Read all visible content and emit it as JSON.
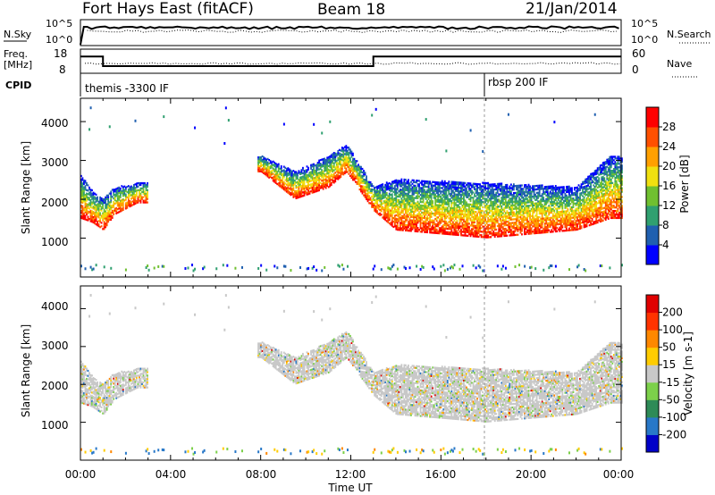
{
  "header": {
    "station": "Fort Hays East (fitACF)",
    "beam": "Beam 18",
    "date": "21/Jan/2014"
  },
  "strip_nsky": {
    "label": "N.Sky",
    "left_ticks": [
      "10^5",
      "10^0"
    ],
    "right_ticks": [
      "10^5",
      "10^0"
    ],
    "right_label": "N.Search",
    "right_legend_style": "dotted"
  },
  "strip_freq": {
    "label_line1": "Freq.",
    "label_line2": "[MHz]",
    "left_ticks": [
      "18",
      "8"
    ],
    "right_ticks": [
      "60",
      "0"
    ],
    "right_label": "Nave",
    "right_legend_style": "dotted",
    "freq_mhz": [
      {
        "t_start": 0.0,
        "t_end": 1.0,
        "value": 15.0
      },
      {
        "t_start": 1.0,
        "t_end": 13.0,
        "value": 10.5
      },
      {
        "t_start": 13.0,
        "t_end": 24.0,
        "value": 15.0
      }
    ]
  },
  "cpid": {
    "label": "CPID",
    "segments": [
      {
        "t_start": 0.0,
        "text": "themis -3300 IF"
      },
      {
        "t_start": 18.0,
        "text": "rbsp 200 IF"
      }
    ]
  },
  "chart_data": [
    {
      "type": "heatmap",
      "title": "",
      "ylabel": "Slant Range [km]",
      "xlabel": "",
      "xlim": [
        0,
        24
      ],
      "ylim": [
        0,
        4600
      ],
      "yticks": [
        "1000",
        "2000",
        "3000",
        "4000"
      ],
      "colorbar": {
        "label": "Power [dB]",
        "ticks": [
          "4",
          "8",
          "12",
          "16",
          "20",
          "24",
          "28"
        ],
        "colors": [
          "#0000ff",
          "#2060b0",
          "#30a070",
          "#70c030",
          "#f0e010",
          "#ffa000",
          "#ff5000",
          "#ff0000"
        ]
      },
      "echo_bands": [
        {
          "t": 0.0,
          "low": 1500,
          "high": 2600
        },
        {
          "t": 0.5,
          "low": 1400,
          "high": 2200
        },
        {
          "t": 1.0,
          "low": 1200,
          "high": 2000
        },
        {
          "t": 1.5,
          "low": 1600,
          "high": 2300
        },
        {
          "t": 2.5,
          "low": 1900,
          "high": 2400
        },
        {
          "t": 8.0,
          "low": 2700,
          "high": 3100
        },
        {
          "t": 9.5,
          "low": 2000,
          "high": 2700
        },
        {
          "t": 11.0,
          "low": 2300,
          "high": 3100
        },
        {
          "t": 11.8,
          "low": 2700,
          "high": 3400
        },
        {
          "t": 13.0,
          "low": 1700,
          "high": 2300
        },
        {
          "t": 14.0,
          "low": 1200,
          "high": 2500
        },
        {
          "t": 18.0,
          "low": 1000,
          "high": 2400
        },
        {
          "t": 22.0,
          "low": 1200,
          "high": 2300
        },
        {
          "t": 23.5,
          "low": 1500,
          "high": 3100
        }
      ]
    },
    {
      "type": "heatmap",
      "title": "",
      "ylabel": "Slant Range [km]",
      "xlabel": "Time UT",
      "xlim": [
        0,
        24
      ],
      "ylim": [
        0,
        4600
      ],
      "yticks": [
        "1000",
        "2000",
        "3000",
        "4000"
      ],
      "xticks": [
        "00:00",
        "04:00",
        "08:00",
        "12:00",
        "16:00",
        "20:00",
        "00:00"
      ],
      "colorbar": {
        "label": "Velocity [m s-1]",
        "ticks": [
          "200",
          "100",
          "50",
          "15",
          "-15",
          "-50",
          "-100",
          "-200"
        ],
        "colors": [
          "#0000c8",
          "#2878c8",
          "#2e8b57",
          "#7cd04a",
          "#c8c8c8",
          "#ffcc00",
          "#ff8800",
          "#ff3300",
          "#e00000"
        ]
      }
    }
  ]
}
